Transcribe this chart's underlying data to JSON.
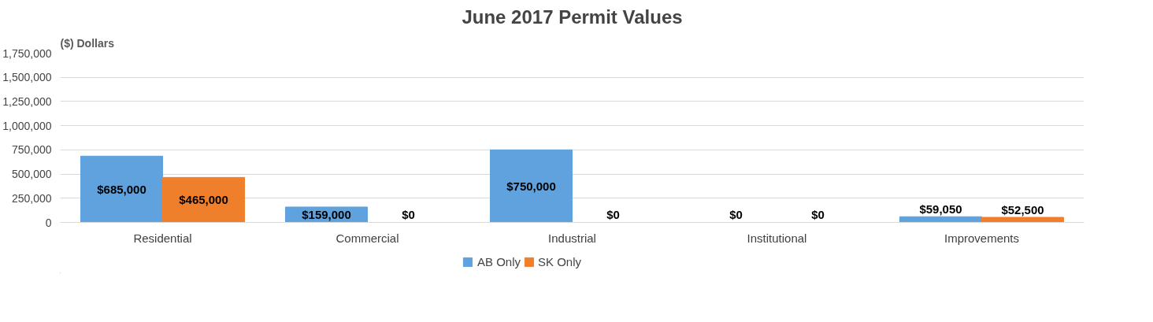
{
  "chart_data": {
    "type": "bar",
    "title": "June 2017 Permit Values",
    "ylabel": "($) Dollars",
    "categories": [
      "Residential",
      "Commercial",
      "Industrial",
      "Institutional",
      "Improvements"
    ],
    "series": [
      {
        "name": "AB Only",
        "color": "#5fa2dd",
        "values": [
          685000,
          159000,
          750000,
          0,
          59050
        ],
        "value_labels": [
          "$685,000",
          "$159,000",
          "$750,000",
          "$0",
          "$59,050"
        ]
      },
      {
        "name": "SK Only",
        "color": "#f07f2c",
        "values": [
          465000,
          0,
          0,
          0,
          52500
        ],
        "value_labels": [
          "$465,000",
          "$0",
          "$0",
          "$0",
          "$52,500"
        ]
      }
    ],
    "ylim": [
      0,
      1750000
    ],
    "yticks": [
      {
        "value": 0,
        "label": "0"
      },
      {
        "value": 250000,
        "label": "250,000"
      },
      {
        "value": 500000,
        "label": "500,000"
      },
      {
        "value": 750000,
        "label": "750,000"
      },
      {
        "value": 1000000,
        "label": "1,000,000"
      },
      {
        "value": 1250000,
        "label": "1,250,000"
      },
      {
        "value": 1500000,
        "label": "1,500,000"
      },
      {
        "value": 1750000,
        "label": "1,750,000"
      }
    ],
    "grid": "y",
    "legend": "bottom"
  }
}
